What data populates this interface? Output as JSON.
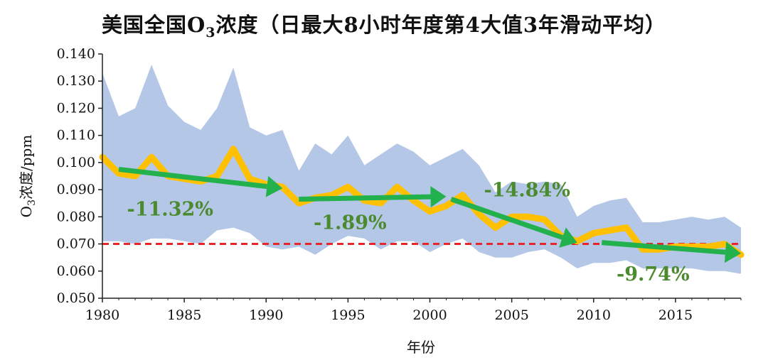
{
  "chart_data": {
    "type": "line",
    "title_prefix": "美国全国O",
    "title_sub": "3",
    "title_suffix": "浓度（日最大8小时年度第4大值3年滑动平均）",
    "xlabel": "年份",
    "ylabel_prefix": "O",
    "ylabel_sub": "3",
    "ylabel_suffix": "浓度/ppm",
    "xlim": [
      1980,
      2019
    ],
    "ylim": [
      0.05,
      0.14
    ],
    "x_ticks": [
      "1980",
      "1985",
      "1990",
      "1995",
      "2000",
      "2005",
      "2010",
      "2015"
    ],
    "x_tick_values": [
      1980,
      1985,
      1990,
      1995,
      2000,
      2005,
      2010,
      2015
    ],
    "y_ticks": [
      "0.050",
      "0.060",
      "0.070",
      "0.080",
      "0.090",
      "0.100",
      "0.110",
      "0.120",
      "0.130",
      "0.140"
    ],
    "y_tick_values": [
      0.05,
      0.06,
      0.07,
      0.08,
      0.09,
      0.1,
      0.11,
      0.12,
      0.13,
      0.14
    ],
    "years": [
      1980,
      1981,
      1982,
      1983,
      1984,
      1985,
      1986,
      1987,
      1988,
      1989,
      1990,
      1991,
      1992,
      1993,
      1994,
      1995,
      1996,
      1997,
      1998,
      1999,
      2000,
      2001,
      2002,
      2003,
      2004,
      2005,
      2006,
      2007,
      2008,
      2009,
      2010,
      2011,
      2012,
      2013,
      2014,
      2015,
      2016,
      2017,
      2018,
      2019
    ],
    "series": [
      {
        "type": "line",
        "color": "#ffc000",
        "values": [
          0.102,
          0.096,
          0.095,
          0.102,
          0.095,
          0.094,
          0.093,
          0.095,
          0.105,
          0.094,
          0.092,
          0.091,
          0.085,
          0.087,
          0.088,
          0.091,
          0.086,
          0.085,
          0.091,
          0.086,
          0.082,
          0.084,
          0.088,
          0.081,
          0.076,
          0.08,
          0.08,
          0.079,
          0.073,
          0.071,
          0.074,
          0.075,
          0.076,
          0.068,
          0.068,
          0.069,
          0.069,
          0.069,
          0.07,
          0.066
        ]
      },
      {
        "type": "band",
        "color": "#b4c7e7",
        "upper": [
          0.133,
          0.117,
          0.12,
          0.136,
          0.121,
          0.115,
          0.112,
          0.12,
          0.135,
          0.113,
          0.11,
          0.112,
          0.097,
          0.107,
          0.103,
          0.11,
          0.099,
          0.103,
          0.107,
          0.104,
          0.099,
          0.102,
          0.105,
          0.099,
          0.089,
          0.093,
          0.092,
          0.093,
          0.092,
          0.08,
          0.084,
          0.086,
          0.087,
          0.078,
          0.078,
          0.079,
          0.08,
          0.079,
          0.08,
          0.076
        ],
        "lower": [
          0.071,
          0.071,
          0.07,
          0.072,
          0.072,
          0.071,
          0.07,
          0.075,
          0.076,
          0.074,
          0.069,
          0.068,
          0.069,
          0.066,
          0.07,
          0.073,
          0.072,
          0.068,
          0.071,
          0.071,
          0.067,
          0.07,
          0.072,
          0.067,
          0.065,
          0.065,
          0.067,
          0.068,
          0.065,
          0.061,
          0.063,
          0.063,
          0.064,
          0.061,
          0.061,
          0.061,
          0.061,
          0.06,
          0.06,
          0.059
        ]
      }
    ],
    "reference_line": {
      "y": 0.07,
      "color": "#e8262a"
    },
    "trends": [
      {
        "x1": 1981,
        "y1": 0.0975,
        "x2": 1991,
        "y2": 0.0905,
        "label": "-11.32%",
        "lx": 1981.5,
        "ly": 0.0805
      },
      {
        "x1": 1992,
        "y1": 0.0865,
        "x2": 2001,
        "y2": 0.0875,
        "label": "-1.89%",
        "lx": 1992.9,
        "ly": 0.0755
      },
      {
        "x1": 2001.3,
        "y1": 0.0865,
        "x2": 2009,
        "y2": 0.0705,
        "label": "-14.84%",
        "lx": 2003.3,
        "ly": 0.0875
      },
      {
        "x1": 2010.5,
        "y1": 0.0705,
        "x2": 2019,
        "y2": 0.0665,
        "label": "-9.74%",
        "lx": 2011.4,
        "ly": 0.0565
      }
    ],
    "arrow_color": "#22b14c"
  }
}
